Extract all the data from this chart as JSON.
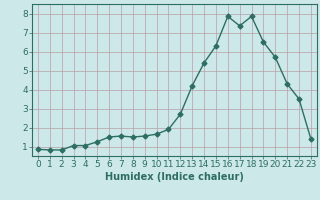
{
  "x": [
    0,
    1,
    2,
    3,
    4,
    5,
    6,
    7,
    8,
    9,
    10,
    11,
    12,
    13,
    14,
    15,
    16,
    17,
    18,
    19,
    20,
    21,
    22,
    23
  ],
  "y": [
    0.85,
    0.82,
    0.82,
    1.05,
    1.05,
    1.25,
    1.5,
    1.55,
    1.5,
    1.55,
    1.65,
    1.9,
    2.7,
    4.2,
    5.4,
    6.3,
    7.85,
    7.35,
    7.85,
    6.5,
    5.7,
    4.3,
    3.5,
    1.4
  ],
  "line_color": "#2e6e62",
  "bg_color": "#cce8e8",
  "grid_color": "#b8a0a8",
  "xlabel": "Humidex (Indice chaleur)",
  "ylim": [
    0.5,
    8.5
  ],
  "xlim": [
    -0.5,
    23.5
  ],
  "yticks": [
    1,
    2,
    3,
    4,
    5,
    6,
    7,
    8
  ],
  "xticks": [
    0,
    1,
    2,
    3,
    4,
    5,
    6,
    7,
    8,
    9,
    10,
    11,
    12,
    13,
    14,
    15,
    16,
    17,
    18,
    19,
    20,
    21,
    22,
    23
  ],
  "marker": "D",
  "marker_size": 2.5,
  "line_width": 1.0,
  "xlabel_fontsize": 7,
  "tick_fontsize": 6.5
}
